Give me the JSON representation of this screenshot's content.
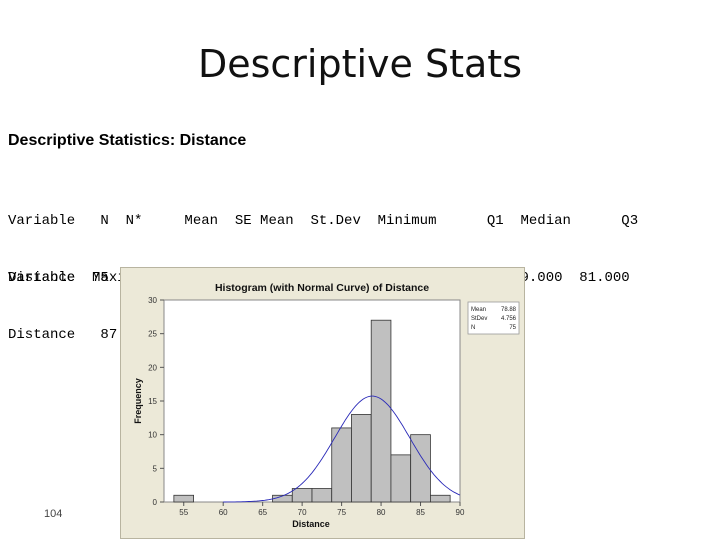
{
  "slide": {
    "title": "Descriptive Stats",
    "subtitle": "Descriptive Statistics: Distance",
    "page_number": "104"
  },
  "stats_table": {
    "row1_header": "Variable   N  N*     Mean  SE Mean  St.Dev  Minimum      Q1  Median      Q3",
    "row1_values": "Distance  75   0  78.880    0.549   4.756   55.000  77.000  79.000  81.000",
    "row2_header": "Variable  Maximum",
    "row2_values": "Distance   87.000"
  },
  "chart_data": {
    "type": "bar",
    "title": "Histogram (with Normal Curve) of Distance",
    "xlabel": "Distance",
    "ylabel": "Frequency",
    "xlim": [
      52.5,
      90
    ],
    "ylim": [
      0,
      30
    ],
    "x_ticks": [
      55,
      60,
      65,
      70,
      75,
      80,
      85,
      90
    ],
    "y_ticks": [
      0,
      5,
      10,
      15,
      20,
      25,
      30
    ],
    "bin_width": 2.5,
    "bins": [
      {
        "x": 55,
        "count": 1
      },
      {
        "x": 57.5,
        "count": 0
      },
      {
        "x": 60,
        "count": 0
      },
      {
        "x": 62.5,
        "count": 0
      },
      {
        "x": 65,
        "count": 0
      },
      {
        "x": 67.5,
        "count": 1
      },
      {
        "x": 70,
        "count": 2
      },
      {
        "x": 72.5,
        "count": 2
      },
      {
        "x": 75,
        "count": 11
      },
      {
        "x": 77.5,
        "count": 13
      },
      {
        "x": 80,
        "count": 27
      },
      {
        "x": 82.5,
        "count": 7
      },
      {
        "x": 85,
        "count": 10
      },
      {
        "x": 87.5,
        "count": 1
      }
    ],
    "normal_curve": {
      "mean": 78.88,
      "stdev": 4.756,
      "n": 75
    },
    "legend": [
      {
        "label": "Mean",
        "value": "78.88"
      },
      {
        "label": "StDev",
        "value": "4.756"
      },
      {
        "label": "N",
        "value": "75"
      }
    ],
    "legend_position": "top-right",
    "bar_color": "#c0c0c0",
    "curve_color": "#2a2ab8"
  }
}
